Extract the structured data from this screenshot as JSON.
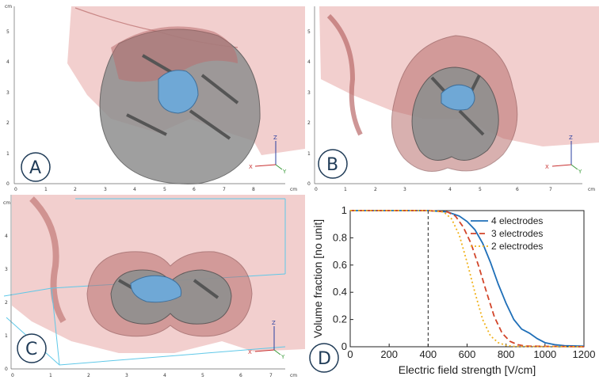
{
  "panels": [
    {
      "label": "A",
      "unit": "cm",
      "x_ticks": [
        "0",
        "1",
        "2",
        "3",
        "4",
        "5",
        "6",
        "7",
        "8"
      ],
      "y_ticks": [
        "0",
        "1",
        "2",
        "3",
        "4",
        "5"
      ],
      "axes": {
        "z": "Z",
        "x": "X",
        "y": "Y"
      }
    },
    {
      "label": "B",
      "unit": "cm",
      "x_ticks": [
        "0",
        "1",
        "2",
        "3",
        "4",
        "5",
        "6",
        "7"
      ],
      "y_ticks": [
        "0",
        "1",
        "2",
        "3",
        "4",
        "5"
      ],
      "axes": {
        "z": "Z",
        "x": "X",
        "y": "Y"
      }
    },
    {
      "label": "C",
      "unit": "cm",
      "x_ticks": [
        "0",
        "1",
        "2",
        "3",
        "4",
        "5",
        "6",
        "7"
      ],
      "y_ticks": [
        "0",
        "1",
        "2",
        "3",
        "4"
      ],
      "axes": {
        "z": "Z",
        "x": "X",
        "y": "Y"
      }
    },
    {
      "label": "D"
    }
  ],
  "colors": {
    "tissue": "#e8a7a6",
    "ablation": "#8f8f8f",
    "tumor": "#6fa8d6",
    "outline": "#7a3a3a",
    "badge_border": "#1f3b57",
    "box": "#5fc8e8"
  },
  "chart_data": {
    "type": "line",
    "xlabel": "Electric field strength [V/cm]",
    "ylabel": "Volume fraction [no unit]",
    "xlim": [
      0,
      1200
    ],
    "ylim": [
      0,
      1
    ],
    "x_ticks": [
      0,
      200,
      400,
      600,
      800,
      1000,
      1200
    ],
    "y_ticks": [
      0,
      0.2,
      0.4,
      0.6,
      0.8,
      1
    ],
    "y_tick_labels": [
      "0",
      "0.2",
      "0.4",
      "0.6",
      "0.8",
      "1"
    ],
    "vline": 400,
    "legend_position": "top-right",
    "series": [
      {
        "name": "4 electrodes",
        "color": "#1f6fb8",
        "dash": "",
        "x": [
          0,
          400,
          500,
          560,
          600,
          640,
          680,
          720,
          760,
          800,
          840,
          880,
          920,
          960,
          1000,
          1050,
          1100,
          1200
        ],
        "y": [
          1,
          1,
          0.99,
          0.96,
          0.92,
          0.86,
          0.76,
          0.62,
          0.46,
          0.32,
          0.2,
          0.13,
          0.1,
          0.06,
          0.03,
          0.015,
          0.008,
          0.004
        ]
      },
      {
        "name": "3 electrodes",
        "color": "#d2452a",
        "dash": "7,4",
        "x": [
          0,
          400,
          500,
          540,
          580,
          620,
          660,
          700,
          740,
          780,
          820,
          860,
          900,
          1200
        ],
        "y": [
          1,
          1,
          0.99,
          0.96,
          0.88,
          0.76,
          0.59,
          0.4,
          0.22,
          0.1,
          0.04,
          0.015,
          0.005,
          0
        ]
      },
      {
        "name": "2 electrodes",
        "color": "#f0b21c",
        "dash": "2,3",
        "x": [
          0,
          400,
          480,
          520,
          560,
          600,
          640,
          680,
          720,
          760,
          800,
          840,
          1200
        ],
        "y": [
          1,
          1,
          0.99,
          0.94,
          0.82,
          0.62,
          0.4,
          0.2,
          0.08,
          0.03,
          0.01,
          0.003,
          0
        ]
      }
    ]
  }
}
